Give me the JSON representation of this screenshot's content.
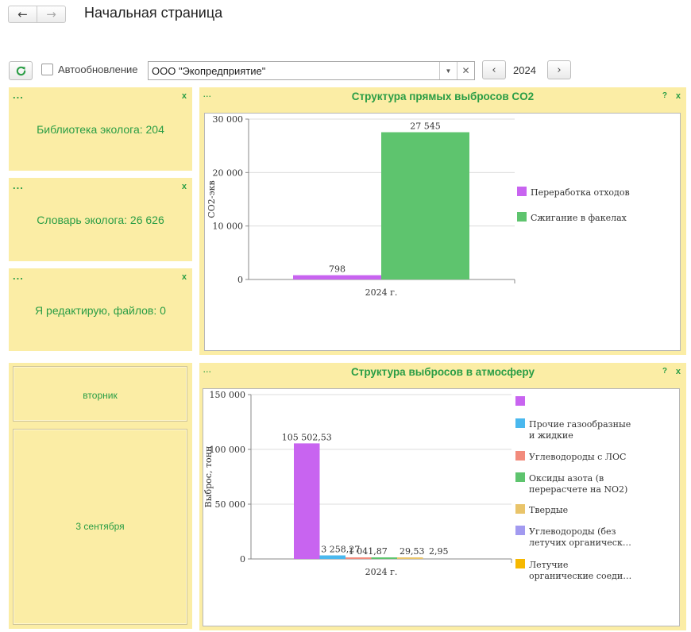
{
  "header": {
    "back_icon": "arrow-left-icon",
    "forward_icon": "arrow-right-icon",
    "title": "Начальная страница"
  },
  "toolbar": {
    "refresh_icon": "refresh-icon",
    "autoupdate_label": "Автообновление",
    "organization": "ООО \"Экопредприятие\"",
    "year": "2024"
  },
  "widgets": {
    "library": {
      "dots": "...",
      "close": "x",
      "text": "Библиотека эколога: 204"
    },
    "dictionary": {
      "dots": "...",
      "close": "x",
      "text": "Словарь эколога: 26 626"
    },
    "editing": {
      "dots": "...",
      "close": "x",
      "text": "Я редактирую, файлов: 0"
    }
  },
  "calendar": {
    "weekday": "вторник",
    "date": "3 сентября"
  },
  "chart_panels": {
    "co2": {
      "dots": "...",
      "help": "?",
      "close": "x"
    },
    "atmo": {
      "dots": "...",
      "help": "?",
      "close": "x"
    }
  },
  "chart_data": [
    {
      "type": "bar",
      "title": "Структура прямых выбросов CO2",
      "ylabel": "CO2-экв",
      "xlabel": "",
      "categories": [
        "2024 г."
      ],
      "ylim": [
        0,
        30000
      ],
      "yticks": [
        0,
        10000,
        20000,
        30000
      ],
      "ytick_labels": [
        "0",
        "10 000",
        "20 000",
        "30 000"
      ],
      "legend_position": "right",
      "series": [
        {
          "name": "Переработка отходов",
          "values": [
            798
          ],
          "label": "798",
          "color": "#c864f0"
        },
        {
          "name": "Сжигание в факелах",
          "values": [
            27545
          ],
          "label": "27 545",
          "color": "#5ec46e"
        }
      ]
    },
    {
      "type": "bar",
      "title": "Структура выбросов в атмосферу",
      "ylabel": "Выброс, тонн",
      "xlabel": "",
      "categories": [
        "2024 г."
      ],
      "ylim": [
        0,
        150000
      ],
      "yticks": [
        0,
        50000,
        100000,
        150000
      ],
      "ytick_labels": [
        "0",
        "50 000",
        "100 000",
        "150 000"
      ],
      "legend_position": "right",
      "series": [
        {
          "name": "",
          "values": [
            105502.53
          ],
          "label": "105 502,53",
          "color": "#c864f0"
        },
        {
          "name": "Прочие газообразные и жидкие",
          "values": [
            3258.27
          ],
          "label": "3 258,27",
          "color": "#4ab8ee"
        },
        {
          "name": "Углеводороды с ЛОС",
          "values": [
            1041.87
          ],
          "label": "1 041,87",
          "color": "#f28b7c"
        },
        {
          "name": "Оксиды азота (в перерасчете на NO2)",
          "values": [
            29.53
          ],
          "label": "29,53",
          "color": "#5ec46e"
        },
        {
          "name": "Твердые",
          "values": [
            2.95
          ],
          "label": "2,95",
          "color": "#e9c46a"
        },
        {
          "name": "Углеводороды (без летучих органическ…",
          "values": [
            0
          ],
          "label": "",
          "color": "#a29af0"
        },
        {
          "name": "Летучие органические соеди…",
          "values": [
            0
          ],
          "label": "",
          "color": "#f6b800"
        }
      ]
    }
  ]
}
